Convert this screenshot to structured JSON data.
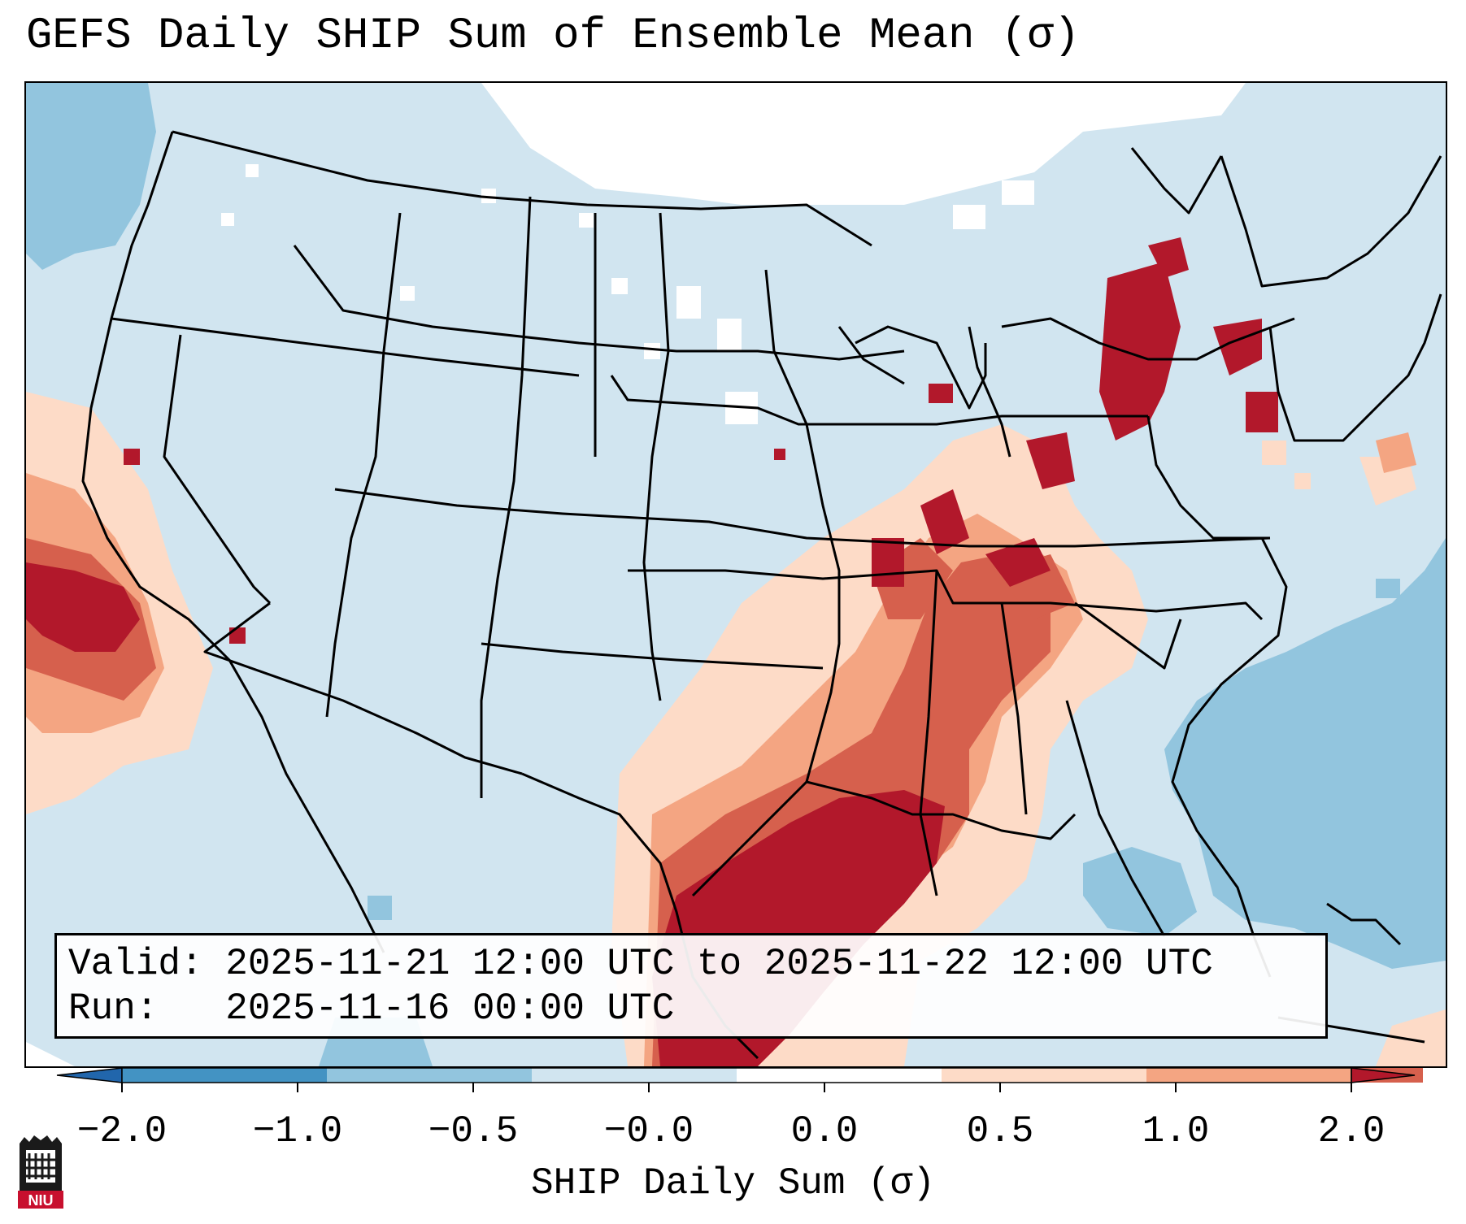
{
  "title": "GEFS Daily SHIP Sum of Ensemble Mean (σ)",
  "info": {
    "valid_label": "Valid:",
    "valid_value": "2025-11-21 12:00 UTC to 2025-11-22 12:00 UTC",
    "run_label": "Run:",
    "run_value": "2025-11-16 00:00 UTC"
  },
  "colorbar": {
    "label": "SHIP Daily Sum (σ)",
    "ticks": [
      "−2.0",
      "−1.0",
      "−0.5",
      "−0.0",
      "0.0",
      "0.5",
      "1.0",
      "2.0"
    ],
    "colors": [
      "#4393c3",
      "#92c5de",
      "#d1e5f0",
      "#ffffff",
      "#fddbc7",
      "#f4a582",
      "#d6604d",
      "#b2182b"
    ],
    "extend": "both"
  },
  "map": {
    "projection": "Lambert Conformal",
    "region": "Contiguous United States",
    "background_value": "−0.5 to −0.0",
    "features": [
      "state borders",
      "country borders",
      "coastlines",
      "lakes"
    ],
    "regions": [
      {
        "name": "Gulf Coast / Texas",
        "category": "> 1.0"
      },
      {
        "name": "Lower Mississippi Valley",
        "category": "0.5 to 1.0"
      },
      {
        "name": "Tennessee Valley / Kentucky",
        "category": "0.5 to 2.0"
      },
      {
        "name": "Southern Ontario / Lower Great Lakes",
        "category": "> 1.0"
      },
      {
        "name": "Eastern Pacific off California",
        "category": "> 1.0"
      },
      {
        "name": "Western Atlantic / Florida",
        "category": "−1.0 to −0.5"
      },
      {
        "name": "Northern Plains / Canadian Prairies",
        "category": "−0.0 to 0.0"
      }
    ]
  },
  "logo": {
    "text": "NIU"
  }
}
